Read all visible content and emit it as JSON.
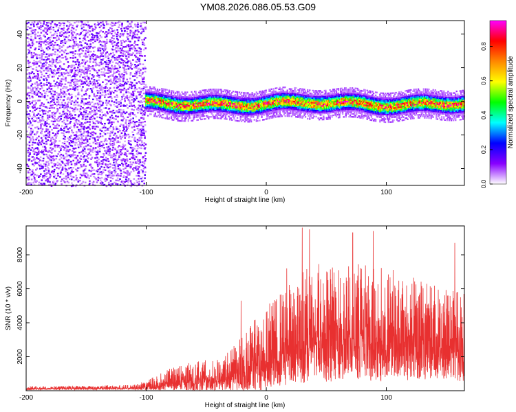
{
  "title": "YM08.2026.086.05.53.G09",
  "chart_data": [
    {
      "type": "heatmap",
      "xlabel": "Height of straight line (km)",
      "ylabel": "Frequency (Hz)",
      "xlim": [
        -200,
        165
      ],
      "ylim": [
        -50,
        48
      ],
      "xticks": [
        -200,
        -100,
        0,
        100
      ],
      "yticks": [
        -40,
        -20,
        0,
        20,
        40
      ],
      "colorbar": {
        "label": "Normalized spectral amplitude",
        "range": [
          0.0,
          0.95
        ],
        "ticks": [
          0.0,
          0.2,
          0.4,
          0.6,
          0.8
        ],
        "tick_labels": [
          "0.0",
          "0.2",
          "0.4",
          "0.6",
          "0.8"
        ],
        "colormap": [
          "#ffffff",
          "#8800ff",
          "#0000ff",
          "#00ffff",
          "#00ff00",
          "#ffff00",
          "#ff8800",
          "#ff0000",
          "#ff00ff"
        ]
      },
      "regions": [
        {
          "name": "broadband noise",
          "x_range": [
            -200,
            -101
          ],
          "freq_range": [
            -50,
            48
          ],
          "amplitude": "low"
        },
        {
          "name": "signal band",
          "x_range": [
            -101,
            165
          ],
          "center_freq": -1,
          "half_width_hz": 4,
          "peak_amplitude": 0.9
        }
      ]
    },
    {
      "type": "line",
      "xlabel": "Height of straight line (km)",
      "ylabel": "SNR (10 * v/v)",
      "xlim": [
        -200,
        165
      ],
      "ylim": [
        0,
        9700
      ],
      "xticks": [
        -200,
        -100,
        0,
        100
      ],
      "yticks": [
        2000,
        4000,
        6000,
        8000
      ],
      "series_color": "#e83030",
      "envelope": [
        {
          "x": -200,
          "mean": 150,
          "spread": 120
        },
        {
          "x": -110,
          "mean": 200,
          "spread": 150
        },
        {
          "x": -95,
          "mean": 380,
          "spread": 400
        },
        {
          "x": -80,
          "mean": 650,
          "spread": 700
        },
        {
          "x": -65,
          "mean": 800,
          "spread": 900
        },
        {
          "x": -50,
          "mean": 900,
          "spread": 1000
        },
        {
          "x": -35,
          "mean": 1000,
          "spread": 1100
        },
        {
          "x": -20,
          "mean": 1600,
          "spread": 1800
        },
        {
          "x": -10,
          "mean": 2100,
          "spread": 2300
        },
        {
          "x": 0,
          "mean": 2500,
          "spread": 2600
        },
        {
          "x": 15,
          "mean": 3100,
          "spread": 3000
        },
        {
          "x": 30,
          "mean": 3700,
          "spread": 3600
        },
        {
          "x": 50,
          "mean": 4100,
          "spread": 3800
        },
        {
          "x": 70,
          "mean": 4000,
          "spread": 3800
        },
        {
          "x": 90,
          "mean": 3900,
          "spread": 3700
        },
        {
          "x": 110,
          "mean": 3800,
          "spread": 3400
        },
        {
          "x": 130,
          "mean": 3500,
          "spread": 3100
        },
        {
          "x": 150,
          "mean": 3300,
          "spread": 2900
        },
        {
          "x": 165,
          "mean": 3200,
          "spread": 2800
        }
      ],
      "notable_peaks": [
        {
          "x": -21,
          "y": 5300
        },
        {
          "x": 17,
          "y": 7200
        },
        {
          "x": 30,
          "y": 9600
        },
        {
          "x": 36,
          "y": 9500
        },
        {
          "x": 72,
          "y": 9300
        },
        {
          "x": 89,
          "y": 9400
        },
        {
          "x": 157,
          "y": 8700
        }
      ]
    }
  ]
}
